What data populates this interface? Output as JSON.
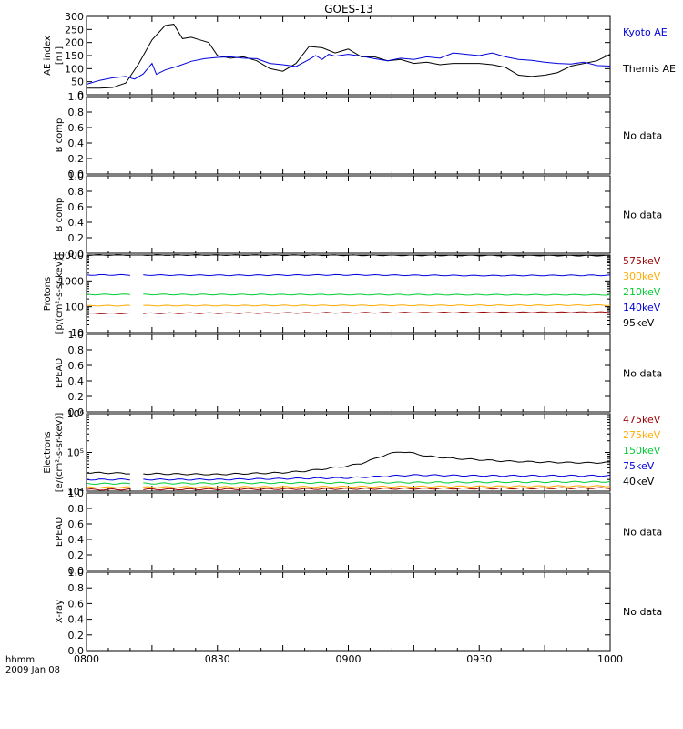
{
  "title": "GOES-13",
  "xaxis": {
    "ticks": [
      "0800",
      "0830",
      "0900",
      "0930",
      "1000"
    ],
    "label_line1": "hhmm",
    "label_line2": "2009 Jan 08"
  },
  "colors": {
    "black": "#000000",
    "blue": "#0000dd",
    "green": "#00cc33",
    "orange": "#ffaa00",
    "darkred": "#990000"
  },
  "chart_data": [
    {
      "type": "line",
      "ylabel": [
        "AE index",
        "[nT]"
      ],
      "ylim": [
        0,
        300
      ],
      "yticks": [
        "0",
        "50",
        "100",
        "150",
        "200",
        "250",
        "300"
      ],
      "x_units": "minutes from 0800",
      "series": [
        {
          "name": "Kyoto AE",
          "color": "blue",
          "x": [
            0,
            6,
            12,
            18,
            22,
            26,
            30,
            32,
            36,
            42,
            48,
            54,
            60,
            66,
            72,
            78,
            84,
            90,
            96,
            102,
            105,
            108,
            111,
            114,
            120,
            126,
            132,
            138,
            144,
            150,
            156,
            162,
            168,
            174,
            180,
            186,
            192,
            198,
            204,
            210,
            216,
            222,
            228,
            234,
            240
          ],
          "y": [
            40,
            55,
            65,
            70,
            60,
            80,
            120,
            78,
            95,
            110,
            128,
            138,
            143,
            145,
            140,
            138,
            120,
            115,
            108,
            135,
            150,
            135,
            155,
            148,
            155,
            148,
            138,
            130,
            140,
            135,
            145,
            140,
            160,
            155,
            150,
            160,
            145,
            135,
            132,
            125,
            120,
            118,
            125,
            112,
            110
          ]
        },
        {
          "name": "Themis AE",
          "color": "black",
          "x": [
            0,
            6,
            12,
            18,
            24,
            30,
            36,
            40,
            44,
            48,
            52,
            56,
            60,
            66,
            72,
            78,
            84,
            90,
            96,
            102,
            108,
            114,
            120,
            126,
            132,
            138,
            144,
            150,
            156,
            162,
            168,
            174,
            180,
            186,
            192,
            198,
            204,
            210,
            216,
            222,
            228,
            234,
            240
          ],
          "y": [
            25,
            25,
            28,
            45,
            120,
            210,
            265,
            270,
            215,
            220,
            210,
            200,
            150,
            140,
            145,
            130,
            100,
            90,
            120,
            185,
            180,
            160,
            175,
            145,
            145,
            130,
            135,
            120,
            125,
            115,
            120,
            120,
            120,
            115,
            105,
            75,
            70,
            75,
            85,
            110,
            120,
            130,
            155
          ]
        }
      ]
    },
    {
      "type": "line",
      "ylabel": [
        "B comp"
      ],
      "ylim": [
        0,
        1.0
      ],
      "yticks": [
        "0.0",
        "0.2",
        "0.4",
        "0.6",
        "0.8",
        "1.0"
      ],
      "status": "No data",
      "series": []
    },
    {
      "type": "line",
      "ylabel": [
        "B comp"
      ],
      "ylim": [
        0,
        1.0
      ],
      "yticks": [
        "0.0",
        "0.2",
        "0.4",
        "0.6",
        "0.8",
        "1.0"
      ],
      "status": "No data",
      "series": []
    },
    {
      "type": "line",
      "ylabel": [
        "Protons",
        "[p/(cm²-s-sr-keV)]"
      ],
      "ylim": [
        10,
        10000
      ],
      "log": true,
      "yticks": [
        "10",
        "100",
        "1000",
        "10000"
      ],
      "gap": [
        21,
        24
      ],
      "series": [
        {
          "name": "575keV",
          "color": "darkred",
          "x": [
            0,
            240
          ],
          "y": [
            55,
            62
          ]
        },
        {
          "name": "300keV",
          "color": "orange",
          "x": [
            0,
            240
          ],
          "y": [
            110,
            115
          ]
        },
        {
          "name": "210keV",
          "color": "green",
          "x": [
            0,
            240
          ],
          "y": [
            300,
            290
          ]
        },
        {
          "name": "140keV",
          "color": "blue",
          "x": [
            0,
            60,
            120,
            180,
            240
          ],
          "y": [
            1700,
            1650,
            1700,
            1600,
            1650
          ]
        },
        {
          "name": "95keV",
          "color": "black",
          "x": [
            0,
            60,
            120,
            180,
            240
          ],
          "y": [
            10000,
            10000,
            9800,
            9600,
            9500
          ]
        }
      ]
    },
    {
      "type": "line",
      "ylabel": [
        "EPEAD"
      ],
      "ylim": [
        0,
        1.0
      ],
      "yticks": [
        "0.0",
        "0.2",
        "0.4",
        "0.6",
        "0.8",
        "1.0"
      ],
      "status": "No data",
      "series": []
    },
    {
      "type": "line",
      "ylabel": [
        "Electrons",
        "[e/(cm²-s-sr-keV)]"
      ],
      "ylim": [
        10000,
        1000000
      ],
      "log": true,
      "yticks": [
        "10⁴",
        "10⁵",
        "10⁶"
      ],
      "gap": [
        21,
        24
      ],
      "series": [
        {
          "name": "475keV",
          "color": "darkred",
          "x": [
            0,
            240
          ],
          "y": [
            11000,
            12000
          ]
        },
        {
          "name": "275keV",
          "color": "orange",
          "x": [
            0,
            240
          ],
          "y": [
            12500,
            13500
          ]
        },
        {
          "name": "150keV",
          "color": "green",
          "x": [
            0,
            240
          ],
          "y": [
            15500,
            17500
          ]
        },
        {
          "name": "75keV",
          "color": "blue",
          "x": [
            0,
            60,
            120,
            150,
            180,
            240
          ],
          "y": [
            20000,
            20000,
            22000,
            26000,
            25000,
            25000
          ]
        },
        {
          "name": "40keV",
          "color": "black",
          "x": [
            0,
            30,
            60,
            90,
            100,
            110,
            120,
            126,
            132,
            138,
            144,
            150,
            156,
            162,
            168,
            180,
            190,
            200,
            210,
            220,
            230,
            240
          ],
          "y": [
            30000,
            28000,
            27000,
            30000,
            33000,
            38000,
            45000,
            52000,
            68000,
            90000,
            105000,
            95000,
            80000,
            75000,
            70000,
            65000,
            60000,
            58000,
            56000,
            55000,
            54000,
            55000
          ]
        }
      ]
    },
    {
      "type": "line",
      "ylabel": [
        "EPEAD"
      ],
      "ylim": [
        0,
        1.0
      ],
      "yticks": [
        "0.0",
        "0.2",
        "0.4",
        "0.6",
        "0.8",
        "1.0"
      ],
      "status": "No data",
      "series": []
    },
    {
      "type": "line",
      "ylabel": [
        "X-ray"
      ],
      "ylim": [
        0,
        1.0
      ],
      "yticks": [
        "0.0",
        "0.2",
        "0.4",
        "0.6",
        "0.8",
        "1.0"
      ],
      "status": "No data",
      "series": []
    }
  ]
}
